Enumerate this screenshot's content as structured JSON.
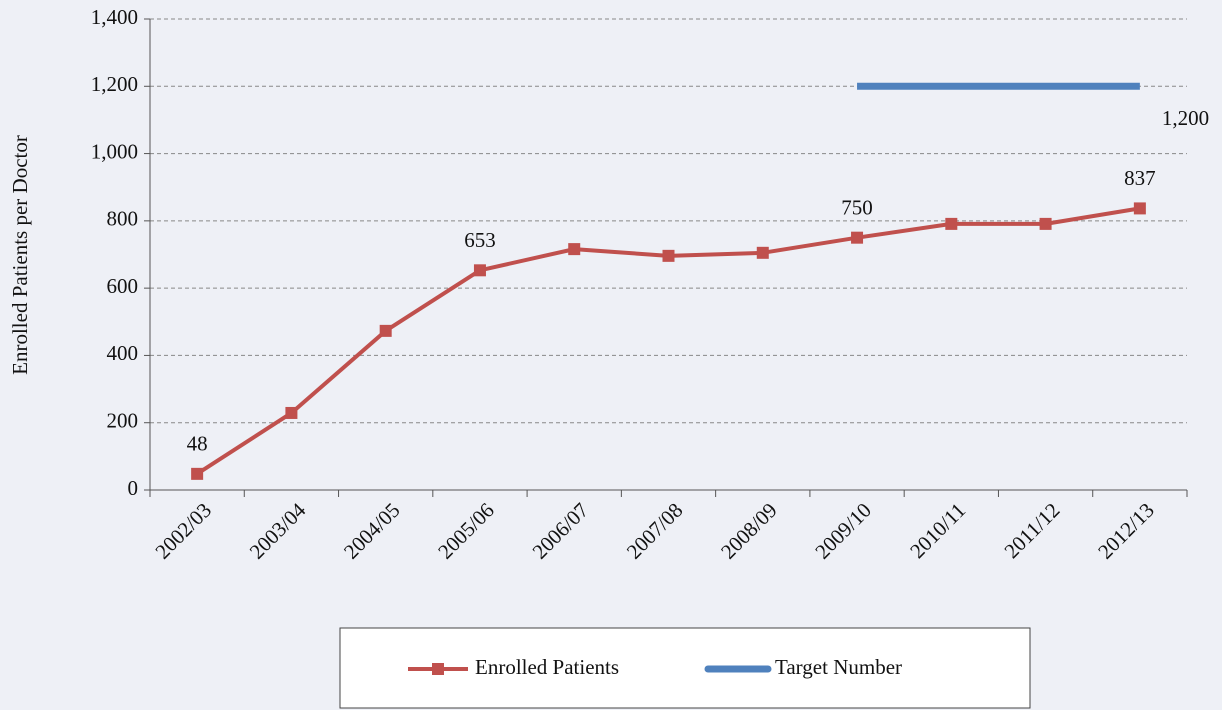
{
  "chart_data": {
    "type": "line",
    "y_axis_label": "Enrolled Patients per Doctor",
    "categories": [
      "2002/03",
      "2003/04",
      "2004/05",
      "2005/06",
      "2006/07",
      "2007/08",
      "2008/09",
      "2009/10",
      "2010/11",
      "2011/12",
      "2012/13"
    ],
    "series": [
      {
        "name": "Enrolled Patients",
        "color": "#c0504d",
        "marker": "square",
        "label_position": "above",
        "values": [
          48,
          229,
          473,
          653,
          716,
          696,
          705,
          750,
          791,
          791,
          837
        ],
        "value_labels": [
          "48",
          null,
          null,
          "653",
          null,
          null,
          null,
          "750",
          null,
          null,
          "837"
        ]
      },
      {
        "name": "Target Number",
        "color": "#4f81bd",
        "marker": "none",
        "label_position": "below",
        "values": [
          null,
          null,
          null,
          null,
          null,
          null,
          null,
          1200,
          1200,
          1200,
          1200
        ],
        "value_labels": [
          null,
          null,
          null,
          null,
          null,
          null,
          null,
          null,
          null,
          null,
          "1,200"
        ]
      }
    ],
    "ylim": [
      0,
      1400
    ],
    "yticks": [
      0,
      200,
      400,
      600,
      800,
      {
        "value": 1000,
        "label": "1,000"
      },
      {
        "value": 1200,
        "label": "1,200"
      },
      {
        "value": 1400,
        "label": "1,400"
      }
    ],
    "grid": true,
    "legend": "bottom"
  }
}
